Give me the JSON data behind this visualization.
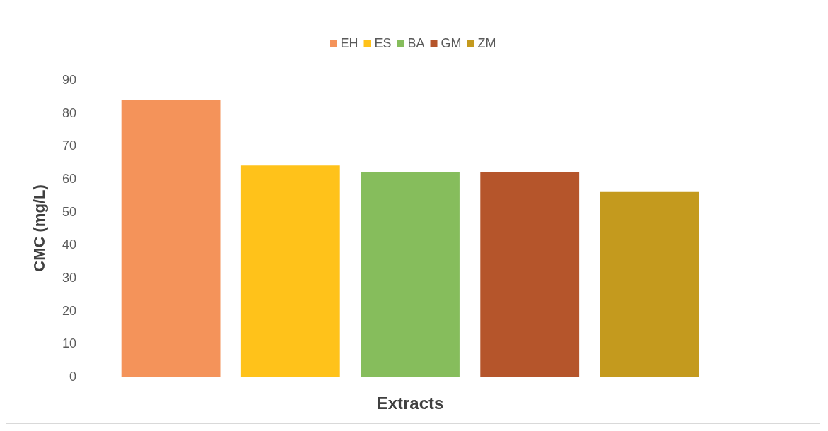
{
  "chart_data": {
    "type": "bar",
    "xlabel": "Extracts",
    "ylabel": "CMC (mg/L)",
    "categories": [
      null
    ],
    "series": [
      {
        "name": "EH",
        "color": "#f4935a",
        "values": [
          84
        ]
      },
      {
        "name": "ES",
        "color": "#ffc21a",
        "values": [
          64
        ]
      },
      {
        "name": "BA",
        "color": "#86bd5c",
        "values": [
          62
        ]
      },
      {
        "name": "GM",
        "color": "#b5552b",
        "values": [
          62
        ]
      },
      {
        "name": "ZM",
        "color": "#c49a1e",
        "values": [
          56
        ]
      }
    ],
    "ylim": [
      0,
      90
    ],
    "yticks": [
      0,
      10,
      20,
      30,
      40,
      50,
      60,
      70,
      80,
      90
    ],
    "grid": false,
    "legend": "top"
  }
}
